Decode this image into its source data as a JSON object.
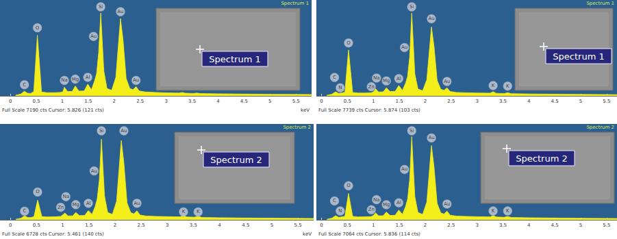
{
  "chart_data": [
    {
      "type": "line",
      "title": "Spectrum 1",
      "inset_label": "Spectrum 1",
      "footer": "Full Scale 7190 cts Cursor: 5.826 (121 cts)",
      "x_label": "keV",
      "color": "#f4ee1a",
      "x": [
        0.1,
        0.2,
        0.27,
        0.33,
        0.39,
        0.45,
        0.52,
        0.6,
        0.7,
        0.85,
        0.96,
        1.01,
        1.04,
        1.1,
        1.19,
        1.25,
        1.32,
        1.42,
        1.49,
        1.56,
        1.62,
        1.66,
        1.7,
        1.74,
        1.8,
        1.86,
        1.95,
        2.03,
        2.12,
        2.17,
        2.23,
        2.3,
        2.36,
        2.42,
        2.48,
        2.6,
        2.8,
        3.0,
        3.25,
        3.31,
        3.37,
        3.52,
        3.59,
        3.66,
        4.0,
        4.5,
        5.0,
        5.5,
        5.8
      ],
      "values": [
        50,
        150,
        380,
        220,
        200,
        350,
        4900,
        320,
        260,
        260,
        280,
        330,
        700,
        360,
        360,
        800,
        390,
        400,
        950,
        500,
        1200,
        1800,
        3500,
        6700,
        2000,
        600,
        450,
        1500,
        6250,
        4500,
        1400,
        600,
        500,
        750,
        400,
        320,
        280,
        250,
        230,
        280,
        220,
        200,
        230,
        190,
        170,
        150,
        130,
        120,
        110
      ],
      "xlim": [
        -0.2,
        5.8
      ],
      "xticks": [
        0,
        0.5,
        1,
        1.5,
        2,
        2.5,
        3,
        3.5,
        4,
        4.5,
        5,
        5.5
      ],
      "ylim": [
        0,
        7190
      ],
      "tick_labels": "x",
      "grid": false,
      "annotations": [
        {
          "x": 0.27,
          "y": 900,
          "label": "C"
        },
        {
          "x": 0.52,
          "y": 5500,
          "label": "O"
        },
        {
          "x": 1.04,
          "y": 1250,
          "label": "Na"
        },
        {
          "x": 1.25,
          "y": 1350,
          "label": "Mg"
        },
        {
          "x": 1.49,
          "y": 1500,
          "label": "Al"
        },
        {
          "x": 1.6,
          "y": 4800,
          "label": "Au"
        },
        {
          "x": 1.74,
          "y": 7190,
          "label": "Si"
        },
        {
          "x": 2.12,
          "y": 6800,
          "label": "Au"
        },
        {
          "x": 2.42,
          "y": 1250,
          "label": "Au"
        }
      ]
    },
    {
      "type": "line",
      "title": "Spectrum 1",
      "inset_label": "Spectrum 1",
      "footer": "Full Scale 7739 cts Cursor: 5.874 (103 cts)",
      "color": "#f4ee1a",
      "x": [
        0.1,
        0.2,
        0.27,
        0.33,
        0.39,
        0.45,
        0.52,
        0.6,
        0.7,
        0.85,
        0.96,
        1.01,
        1.04,
        1.1,
        1.19,
        1.25,
        1.32,
        1.42,
        1.49,
        1.56,
        1.62,
        1.66,
        1.7,
        1.74,
        1.8,
        1.86,
        1.95,
        2.03,
        2.12,
        2.17,
        2.23,
        2.3,
        2.36,
        2.42,
        2.48,
        2.6,
        2.8,
        3.0,
        3.25,
        3.31,
        3.37,
        3.52,
        3.59,
        3.66,
        4.0,
        4.5,
        5.0,
        5.5,
        5.8
      ],
      "values": [
        50,
        150,
        350,
        220,
        250,
        320,
        4000,
        300,
        250,
        250,
        270,
        380,
        620,
        340,
        350,
        700,
        380,
        400,
        900,
        480,
        1100,
        1700,
        3400,
        7200,
        1900,
        600,
        450,
        1400,
        6000,
        4300,
        1350,
        580,
        480,
        700,
        380,
        300,
        270,
        250,
        240,
        360,
        230,
        200,
        280,
        190,
        170,
        150,
        130,
        115,
        105
      ],
      "xlim": [
        -0.1,
        5.7
      ],
      "xticks": [
        0,
        0.5,
        1,
        1.5,
        2,
        2.5,
        3,
        3.5,
        4,
        4.5,
        5,
        5.5
      ],
      "ylim": [
        0,
        7739
      ],
      "tick_labels": "x",
      "grid": false,
      "annotations": [
        {
          "x": 0.25,
          "y": 1600,
          "label": "C"
        },
        {
          "x": 0.36,
          "y": 700,
          "label": "N"
        },
        {
          "x": 0.52,
          "y": 4600,
          "label": "O"
        },
        {
          "x": 0.96,
          "y": 800,
          "label": "Zn"
        },
        {
          "x": 1.06,
          "y": 1550,
          "label": "Na"
        },
        {
          "x": 1.25,
          "y": 1300,
          "label": "Mg"
        },
        {
          "x": 1.49,
          "y": 1500,
          "label": "Al"
        },
        {
          "x": 1.6,
          "y": 4200,
          "label": "Au"
        },
        {
          "x": 1.74,
          "y": 7739,
          "label": "Si"
        },
        {
          "x": 2.12,
          "y": 6700,
          "label": "Au"
        },
        {
          "x": 2.42,
          "y": 1250,
          "label": "Au"
        },
        {
          "x": 3.31,
          "y": 900,
          "label": "K"
        },
        {
          "x": 3.59,
          "y": 850,
          "label": "K"
        }
      ]
    },
    {
      "type": "line",
      "title": "Spectrum 2",
      "inset_label": "Spectrum 2",
      "footer": "Full Scale 6728 cts Cursor: 5.461 (140 cts)",
      "x_label": "keV",
      "color": "#f4ee1a",
      "x": [
        0.1,
        0.2,
        0.27,
        0.33,
        0.39,
        0.45,
        0.52,
        0.6,
        0.7,
        0.85,
        0.96,
        1.01,
        1.04,
        1.1,
        1.19,
        1.25,
        1.32,
        1.42,
        1.49,
        1.56,
        1.62,
        1.66,
        1.7,
        1.74,
        1.8,
        1.86,
        1.95,
        2.03,
        2.12,
        2.17,
        2.23,
        2.3,
        2.36,
        2.42,
        2.48,
        2.6,
        2.8,
        3.0,
        3.25,
        3.31,
        3.37,
        3.52,
        3.59,
        3.66,
        4.0,
        4.5,
        5.0,
        5.5,
        5.8
      ],
      "values": [
        40,
        120,
        300,
        180,
        170,
        250,
        1500,
        250,
        220,
        230,
        260,
        400,
        520,
        300,
        300,
        560,
        320,
        330,
        700,
        420,
        1000,
        1600,
        3000,
        6100,
        1800,
        550,
        420,
        1400,
        6000,
        4300,
        1300,
        550,
        450,
        680,
        360,
        290,
        260,
        240,
        230,
        330,
        220,
        200,
        270,
        180,
        160,
        140,
        125,
        110,
        100
      ],
      "xlim": [
        -0.2,
        5.8
      ],
      "xticks": [
        0,
        0.5,
        1,
        1.5,
        2,
        2.5,
        3,
        3.5,
        4,
        4.5,
        5,
        5.5
      ],
      "ylim": [
        0,
        6728
      ],
      "tick_labels": "x",
      "grid": false,
      "annotations": [
        {
          "x": 0.27,
          "y": 650,
          "label": "C"
        },
        {
          "x": 0.52,
          "y": 2100,
          "label": "O"
        },
        {
          "x": 0.96,
          "y": 950,
          "label": "Zn"
        },
        {
          "x": 1.06,
          "y": 1750,
          "label": "Na"
        },
        {
          "x": 1.25,
          "y": 1150,
          "label": "Mg"
        },
        {
          "x": 1.49,
          "y": 1250,
          "label": "Al"
        },
        {
          "x": 1.6,
          "y": 3700,
          "label": "Au"
        },
        {
          "x": 1.74,
          "y": 6728,
          "label": "Si"
        },
        {
          "x": 2.17,
          "y": 6728,
          "label": "Au"
        },
        {
          "x": 2.42,
          "y": 1250,
          "label": "Au"
        },
        {
          "x": 3.31,
          "y": 600,
          "label": "K"
        },
        {
          "x": 3.59,
          "y": 600,
          "label": "K"
        }
      ]
    },
    {
      "type": "line",
      "title": "Spectrum 2",
      "inset_label": "Spectrum 2",
      "footer": "Full Scale 7064 cts Cursor: 5.836 (114 cts)",
      "color": "#f4ee1a",
      "x": [
        0.1,
        0.2,
        0.27,
        0.33,
        0.39,
        0.45,
        0.52,
        0.6,
        0.7,
        0.85,
        0.96,
        1.01,
        1.04,
        1.1,
        1.19,
        1.25,
        1.32,
        1.42,
        1.49,
        1.56,
        1.62,
        1.66,
        1.7,
        1.74,
        1.8,
        1.86,
        1.95,
        2.03,
        2.12,
        2.17,
        2.23,
        2.3,
        2.36,
        2.42,
        2.48,
        2.6,
        2.8,
        3.0,
        3.25,
        3.31,
        3.37,
        3.52,
        3.59,
        3.66,
        4.0,
        4.5,
        5.0,
        5.5,
        5.8
      ],
      "values": [
        45,
        130,
        330,
        200,
        230,
        280,
        2100,
        270,
        230,
        240,
        260,
        380,
        560,
        320,
        330,
        620,
        350,
        360,
        780,
        440,
        1050,
        1650,
        3200,
        6600,
        1850,
        580,
        430,
        1400,
        5900,
        4200,
        1300,
        560,
        460,
        690,
        370,
        300,
        270,
        250,
        235,
        340,
        225,
        200,
        270,
        185,
        165,
        145,
        128,
        112,
        102
      ],
      "xlim": [
        -0.1,
        5.7
      ],
      "xticks": [
        0,
        0.5,
        1,
        1.5,
        2,
        2.5,
        3,
        3.5,
        4,
        4.5,
        5,
        5.5
      ],
      "ylim": [
        0,
        7064
      ],
      "tick_labels": "x",
      "grid": false,
      "annotations": [
        {
          "x": 0.25,
          "y": 1500,
          "label": "C"
        },
        {
          "x": 0.36,
          "y": 700,
          "label": "N"
        },
        {
          "x": 0.52,
          "y": 2700,
          "label": "O"
        },
        {
          "x": 0.96,
          "y": 800,
          "label": "Zn"
        },
        {
          "x": 1.06,
          "y": 1600,
          "label": "Na"
        },
        {
          "x": 1.25,
          "y": 1200,
          "label": "Mg"
        },
        {
          "x": 1.49,
          "y": 1350,
          "label": "Al"
        },
        {
          "x": 1.6,
          "y": 4000,
          "label": "Au"
        },
        {
          "x": 1.74,
          "y": 7064,
          "label": "Si"
        },
        {
          "x": 2.12,
          "y": 6500,
          "label": "Au"
        },
        {
          "x": 2.42,
          "y": 1250,
          "label": "Au"
        },
        {
          "x": 3.31,
          "y": 700,
          "label": "K"
        },
        {
          "x": 3.59,
          "y": 700,
          "label": "K"
        }
      ]
    }
  ]
}
